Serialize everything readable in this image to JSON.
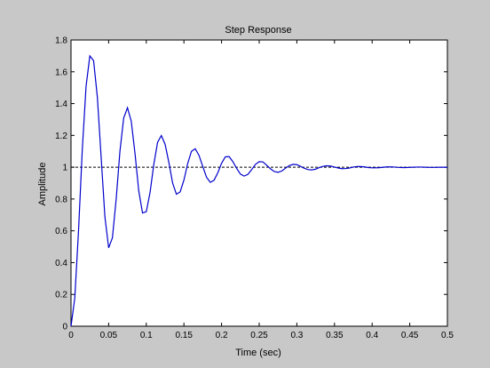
{
  "chart_data": {
    "type": "line",
    "title": "Step Response",
    "xlabel": "Time (sec)",
    "ylabel": "Amplitude",
    "xlim": [
      0,
      0.5
    ],
    "ylim": [
      0,
      1.8
    ],
    "xticks": [
      0,
      0.05,
      0.1,
      0.15,
      0.2,
      0.25,
      0.3,
      0.35,
      0.4,
      0.45,
      0.5
    ],
    "xtick_labels": [
      "0",
      "0.05",
      "0.1",
      "0.15",
      "0.2",
      "0.25",
      "0.3",
      "0.35",
      "0.4",
      "0.45",
      "0.5"
    ],
    "yticks": [
      0,
      0.2,
      0.4,
      0.6,
      0.8,
      1,
      1.2,
      1.4,
      1.6,
      1.8
    ],
    "ytick_labels": [
      "0",
      "0.2",
      "0.4",
      "0.6",
      "0.8",
      "1",
      "1.2",
      "1.4",
      "1.6",
      "1.8"
    ],
    "grid": false,
    "series": [
      {
        "color": "#0000cc",
        "x": [
          0,
          0.005,
          0.01,
          0.015,
          0.02,
          0.025,
          0.03,
          0.035,
          0.04,
          0.045,
          0.05,
          0.055,
          0.06,
          0.065,
          0.07,
          0.075,
          0.08,
          0.085,
          0.09,
          0.095,
          0.1,
          0.105,
          0.11,
          0.115,
          0.12,
          0.125,
          0.13,
          0.135,
          0.14,
          0.145,
          0.15,
          0.155,
          0.16,
          0.165,
          0.17,
          0.175,
          0.18,
          0.185,
          0.19,
          0.195,
          0.2,
          0.205,
          0.21,
          0.215,
          0.22,
          0.225,
          0.23,
          0.235,
          0.24,
          0.245,
          0.25,
          0.255,
          0.26,
          0.265,
          0.27,
          0.275,
          0.28,
          0.285,
          0.29,
          0.295,
          0.3,
          0.305,
          0.31,
          0.315,
          0.32,
          0.325,
          0.33,
          0.335,
          0.34,
          0.345,
          0.35,
          0.355,
          0.36,
          0.365,
          0.37,
          0.375,
          0.38,
          0.385,
          0.39,
          0.395,
          0.4,
          0.405,
          0.41,
          0.415,
          0.42,
          0.425,
          0.43,
          0.435,
          0.44,
          0.445,
          0.45,
          0.455,
          0.46,
          0.465,
          0.47,
          0.475,
          0.48,
          0.485,
          0.49,
          0.495,
          0.5
        ],
        "y": [
          0,
          0.177,
          0.602,
          1.112,
          1.509,
          1.7,
          1.67,
          1.441,
          1.065,
          0.689,
          0.493,
          0.556,
          0.8,
          1.101,
          1.31,
          1.374,
          1.29,
          1.087,
          0.851,
          0.712,
          0.72,
          0.841,
          1.018,
          1.157,
          1.199,
          1.144,
          1.03,
          0.9,
          0.83,
          0.845,
          0.919,
          1.023,
          1.1,
          1.116,
          1.075,
          1.005,
          0.937,
          0.905,
          0.918,
          0.965,
          1.025,
          1.065,
          1.067,
          1.035,
          0.993,
          0.957,
          0.944,
          0.955,
          0.985,
          1.018,
          1.035,
          1.033,
          1.012,
          0.99,
          0.973,
          0.968,
          0.976,
          0.994,
          1.01,
          1.018,
          1.016,
          1.005,
          0.993,
          0.985,
          0.983,
          0.988,
          0.998,
          1.006,
          1.009,
          1.007,
          1.001,
          0.995,
          0.991,
          0.992,
          0.995,
          1.001,
          1.004,
          1.004,
          1.002,
          0.998,
          0.996,
          0.996,
          0.997,
          1.0,
          1.002,
          1.002,
          1.001,
          0.999,
          0.998,
          0.998,
          0.999,
          1.0,
          1.001,
          1.001,
          1.0,
          0.999,
          0.999,
          0.999,
          1.0,
          1.0,
          1.0
        ]
      }
    ],
    "reference_line": {
      "y": 1,
      "style": "dashed",
      "color": "#000000"
    }
  }
}
